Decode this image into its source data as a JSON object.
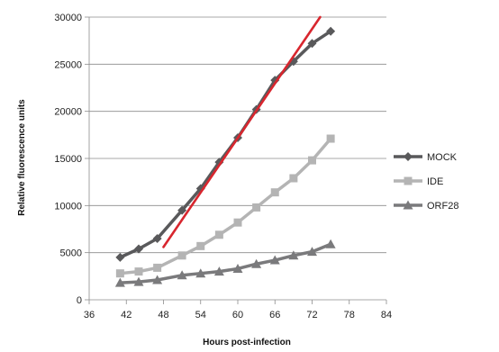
{
  "chart_data": {
    "type": "line",
    "xlabel": "Hours post-infection",
    "ylabel": "Relative fluorescence units",
    "xlim": [
      36,
      84
    ],
    "ylim": [
      0,
      30000
    ],
    "xticks": [
      36,
      42,
      48,
      54,
      60,
      66,
      72,
      78,
      84
    ],
    "yticks": [
      0,
      5000,
      10000,
      15000,
      20000,
      25000,
      30000
    ],
    "grid": "horizontal",
    "legend": "right",
    "series": [
      {
        "name": "MOCK",
        "color": "#59595b",
        "marker": "diamond",
        "x": [
          41,
          44,
          47,
          51,
          54,
          57,
          60,
          63,
          66,
          69,
          72,
          75
        ],
        "y": [
          4500,
          5400,
          6500,
          9500,
          11800,
          14600,
          17200,
          20200,
          23300,
          25300,
          27200,
          28500
        ]
      },
      {
        "name": "IDE",
        "color": "#b4b4b4",
        "marker": "square",
        "x": [
          41,
          44,
          47,
          51,
          54,
          57,
          60,
          63,
          66,
          69,
          72,
          75
        ],
        "y": [
          2800,
          3000,
          3400,
          4700,
          5700,
          6900,
          8200,
          9800,
          11400,
          12900,
          14800,
          17100
        ]
      },
      {
        "name": "ORF28",
        "color": "#7a7a7c",
        "marker": "triangle",
        "x": [
          41,
          44,
          47,
          51,
          54,
          57,
          60,
          63,
          66,
          69,
          72,
          75
        ],
        "y": [
          1800,
          1900,
          2100,
          2600,
          2800,
          3000,
          3300,
          3800,
          4200,
          4700,
          5100,
          5900
        ]
      }
    ],
    "trendline": {
      "color": "#d8262e",
      "x": [
        48,
        73.3
      ],
      "y": [
        5600,
        30000
      ]
    }
  }
}
